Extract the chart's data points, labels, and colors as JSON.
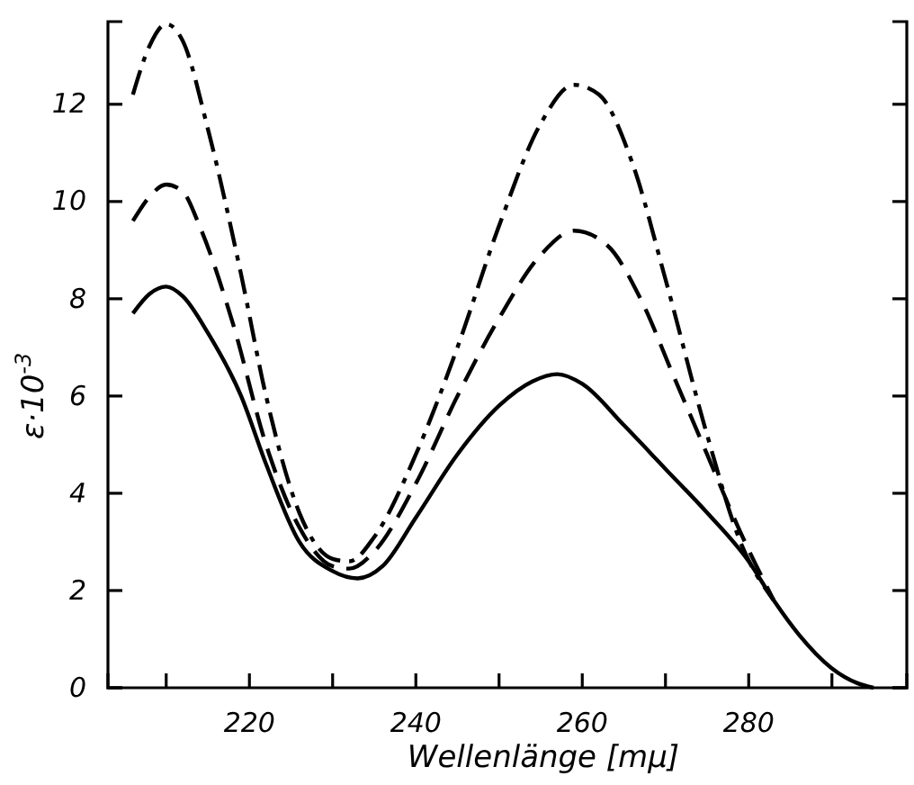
{
  "chart_data": {
    "type": "line",
    "xlabel": "Wellenlänge [mμ]",
    "ylabel": "ε·10$^{-3}$",
    "xlim": [
      203,
      299
    ],
    "ylim": [
      0,
      13.7
    ],
    "xticks": [
      {
        "value": 210,
        "label": null
      },
      220,
      {
        "value": 230,
        "label": null
      },
      240,
      {
        "value": 250,
        "label": null
      },
      260,
      {
        "value": 270,
        "label": null
      },
      280,
      {
        "value": 290,
        "label": null
      }
    ],
    "yticks": [
      0,
      2,
      4,
      6,
      8,
      10,
      12
    ],
    "grid": false,
    "marker": "none",
    "series": [
      {
        "color": "#000000",
        "line_style": "solid",
        "x": [
          206,
          208,
          210,
          212,
          215,
          219,
          222,
          226,
          230,
          233,
          236,
          240,
          245,
          250,
          254,
          257,
          260,
          265,
          270,
          275,
          280,
          283,
          286,
          290,
          293,
          295
        ],
        "values": [
          7.7,
          8.1,
          8.25,
          8.05,
          7.3,
          6.0,
          4.6,
          3.0,
          2.4,
          2.25,
          2.5,
          3.5,
          4.8,
          5.8,
          6.3,
          6.45,
          6.25,
          5.4,
          4.5,
          3.6,
          2.6,
          1.8,
          1.1,
          0.4,
          0.1,
          0
        ]
      },
      {
        "color": "#000000",
        "line_style": "dashed",
        "x": [
          206,
          208,
          210,
          212,
          214,
          218,
          222,
          226,
          230,
          232,
          235,
          240,
          245,
          250,
          255,
          259,
          263,
          267,
          271,
          275,
          279,
          283
        ],
        "values": [
          9.6,
          10.1,
          10.35,
          10.2,
          9.5,
          7.5,
          5.0,
          3.3,
          2.5,
          2.45,
          2.8,
          4.2,
          6.0,
          7.6,
          8.9,
          9.4,
          9.1,
          8.0,
          6.4,
          4.8,
          3.2,
          1.8
        ]
      },
      {
        "color": "#000000",
        "line_style": "dashdot",
        "x": [
          206,
          208,
          210,
          212,
          215,
          219,
          222,
          226,
          230,
          232,
          235,
          240,
          245,
          250,
          255,
          259,
          262,
          266,
          270,
          275,
          279,
          283
        ],
        "values": [
          12.2,
          13.2,
          13.65,
          13.3,
          11.5,
          8.5,
          6.0,
          3.6,
          2.65,
          2.6,
          3.1,
          4.8,
          7.0,
          9.5,
          11.6,
          12.4,
          12.2,
          10.8,
          8.4,
          5.2,
          3.0,
          1.8
        ]
      }
    ]
  }
}
